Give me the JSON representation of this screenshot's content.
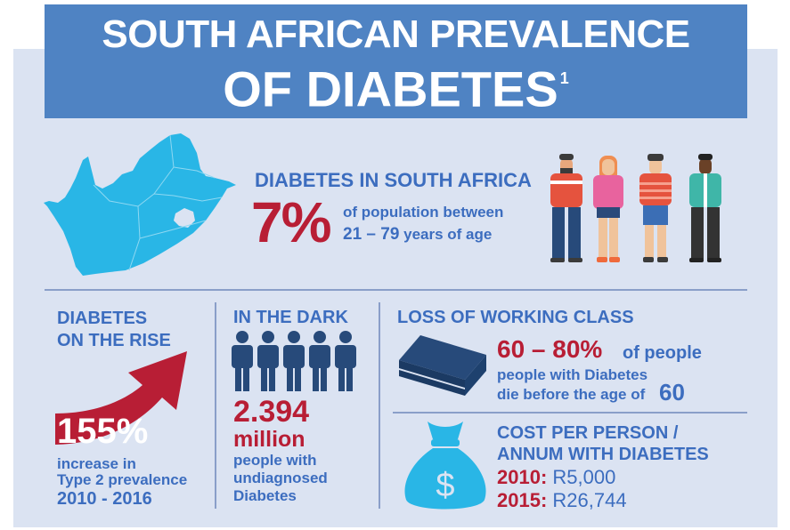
{
  "title": {
    "line1": "SOUTH AFRICAN PREVALENCE",
    "line2": "OF DIABETES",
    "footnote": "1"
  },
  "diabetes_sa": {
    "heading": "DIABETES IN SOUTH AFRICA",
    "percent": "7%",
    "desc_line1": "of population between",
    "desc_range": "21 – 79",
    "desc_line2_rest": " years of age"
  },
  "rise": {
    "heading_line1": "DIABETES",
    "heading_line2": "ON THE RISE",
    "percent": "155%",
    "desc_line1": "increase in",
    "desc_line2": "Type 2 prevalence",
    "years": "2010 - 2016"
  },
  "dark": {
    "heading": "IN THE DARK",
    "number": "2.394",
    "unit": "million",
    "desc_line1": "people with",
    "desc_line2": "undiagnosed",
    "desc_line3": "Diabetes"
  },
  "working": {
    "heading": "LOSS OF WORKING CLASS",
    "range": "60 – 80%",
    "desc_after": "of people",
    "line2": "people with Diabetes",
    "line3": "die before the age of",
    "age": "60"
  },
  "cost": {
    "heading_line1": "COST PER PERSON /",
    "heading_line2": "ANNUM WITH DIABETES",
    "year1": "2010:",
    "val1": "R5,000",
    "year2": "2015:",
    "val2": "R26,744"
  },
  "icons": [
    "south-africa-map",
    "people-group",
    "up-arrow",
    "person-figures",
    "coffin",
    "money-bag"
  ],
  "colors": {
    "banner": "#4f83c3",
    "panel": "#dbe3f2",
    "blue": "#3c6dbf",
    "red": "#b81e35",
    "map": "#29b6e6"
  }
}
